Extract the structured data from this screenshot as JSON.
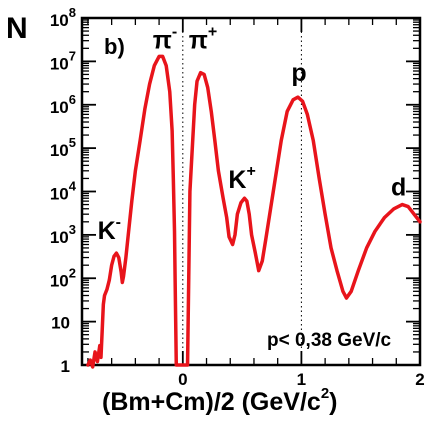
{
  "chart_data": {
    "type": "line",
    "panel_label": "b)",
    "xlabel_main": "(Bm+Cm)/2 (GeV/c",
    "xlabel_sup": "2",
    "xlabel_end": ")",
    "ylabel": "N",
    "xlim": [
      -0.85,
      2.0
    ],
    "ylim_log10": [
      0,
      8
    ],
    "x_ticks": [
      {
        "value": 0,
        "label": "0"
      },
      {
        "value": 1,
        "label": "1"
      },
      {
        "value": 2,
        "label": "2"
      }
    ],
    "y_ticks": [
      {
        "value": 1,
        "label": "1",
        "base": "",
        "exp": ""
      },
      {
        "value": 10,
        "label": "10",
        "base": "",
        "exp": ""
      },
      {
        "value": 100,
        "label": "",
        "base": "10",
        "exp": "2"
      },
      {
        "value": 1000,
        "label": "",
        "base": "10",
        "exp": "3"
      },
      {
        "value": 10000,
        "label": "",
        "base": "10",
        "exp": "4"
      },
      {
        "value": 100000,
        "label": "",
        "base": "10",
        "exp": "5"
      },
      {
        "value": 1000000,
        "label": "",
        "base": "10",
        "exp": "6"
      },
      {
        "value": 10000000,
        "label": "",
        "base": "10",
        "exp": "7"
      },
      {
        "value": 100000000,
        "label": "",
        "base": "10",
        "exp": "8"
      }
    ],
    "dotted_gridlines_x": [
      0,
      1
    ],
    "line_color": "#e8141b",
    "annotations": [
      {
        "name": "pi-minus",
        "base": "π",
        "sup": "-",
        "x": -0.15,
        "y": 20000000
      },
      {
        "name": "pi-plus",
        "base": "π",
        "sup": "+",
        "x": 0.17,
        "y": 20000000
      },
      {
        "name": "proton",
        "base": "p",
        "sup": "",
        "x": 0.98,
        "y": 3500000
      },
      {
        "name": "k-plus",
        "base": "K",
        "sup": "+",
        "x": 0.5,
        "y": 12000
      },
      {
        "name": "k-minus",
        "base": "K",
        "sup": "-",
        "x": -0.62,
        "y": 800
      },
      {
        "name": "deuteron",
        "base": "d",
        "sup": "",
        "x": 1.82,
        "y": 8000
      }
    ],
    "note": "p< 0,38 GeV/c",
    "series": [
      {
        "points": [
          [
            -0.8,
            1.0
          ],
          [
            -0.78,
            1.3
          ],
          [
            -0.76,
            0.9
          ],
          [
            -0.74,
            2.0
          ],
          [
            -0.72,
            1.2
          ],
          [
            -0.7,
            2.8
          ],
          [
            -0.69,
            1.5
          ],
          [
            -0.68,
            6.0
          ],
          [
            -0.67,
            25
          ],
          [
            -0.66,
            40
          ],
          [
            -0.64,
            55
          ],
          [
            -0.62,
            90
          ],
          [
            -0.6,
            200
          ],
          [
            -0.58,
            320
          ],
          [
            -0.56,
            380
          ],
          [
            -0.54,
            300
          ],
          [
            -0.52,
            140
          ],
          [
            -0.51,
            80
          ],
          [
            -0.5,
            110
          ],
          [
            -0.48,
            300
          ],
          [
            -0.46,
            1000
          ],
          [
            -0.43,
            6000
          ],
          [
            -0.4,
            30000
          ],
          [
            -0.36,
            150000
          ],
          [
            -0.32,
            800000
          ],
          [
            -0.28,
            3000000
          ],
          [
            -0.24,
            8000000
          ],
          [
            -0.2,
            13000000
          ],
          [
            -0.17,
            13000000
          ],
          [
            -0.14,
            8000000
          ],
          [
            -0.11,
            2000000
          ],
          [
            -0.09,
            250000
          ],
          [
            -0.08,
            20000
          ],
          [
            -0.07,
            1200
          ],
          [
            -0.065,
            100
          ],
          [
            -0.06,
            10
          ],
          [
            -0.055,
            1.0
          ],
          [
            0.04,
            1.0
          ],
          [
            0.045,
            10
          ],
          [
            0.05,
            100
          ],
          [
            0.055,
            1000
          ],
          [
            0.06,
            10000
          ],
          [
            0.08,
            100000
          ],
          [
            0.1,
            1000000
          ],
          [
            0.12,
            3500000
          ],
          [
            0.15,
            5500000
          ],
          [
            0.18,
            5000000
          ],
          [
            0.21,
            2500000
          ],
          [
            0.24,
            700000
          ],
          [
            0.27,
            150000
          ],
          [
            0.3,
            30000
          ],
          [
            0.34,
            7000
          ],
          [
            0.37,
            2500
          ],
          [
            0.39,
            900
          ],
          [
            0.42,
            600
          ],
          [
            0.44,
            1000
          ],
          [
            0.46,
            3000
          ],
          [
            0.49,
            5500
          ],
          [
            0.52,
            7000
          ],
          [
            0.54,
            6000
          ],
          [
            0.56,
            3000
          ],
          [
            0.58,
            1000
          ],
          [
            0.61,
            400
          ],
          [
            0.64,
            150
          ],
          [
            0.67,
            250
          ],
          [
            0.7,
            800
          ],
          [
            0.74,
            4000
          ],
          [
            0.78,
            20000
          ],
          [
            0.83,
            150000
          ],
          [
            0.88,
            700000
          ],
          [
            0.93,
            1300000
          ],
          [
            0.97,
            1500000
          ],
          [
            1.01,
            1200000
          ],
          [
            1.05,
            600000
          ],
          [
            1.1,
            150000
          ],
          [
            1.15,
            20000
          ],
          [
            1.2,
            3000
          ],
          [
            1.25,
            500
          ],
          [
            1.3,
            150
          ],
          [
            1.35,
            50
          ],
          [
            1.38,
            35
          ],
          [
            1.42,
            50
          ],
          [
            1.48,
            150
          ],
          [
            1.55,
            500
          ],
          [
            1.62,
            1200
          ],
          [
            1.7,
            2500
          ],
          [
            1.78,
            4000
          ],
          [
            1.85,
            5000
          ],
          [
            1.9,
            4500
          ],
          [
            1.95,
            3000
          ],
          [
            2.0,
            2000
          ]
        ]
      }
    ]
  }
}
